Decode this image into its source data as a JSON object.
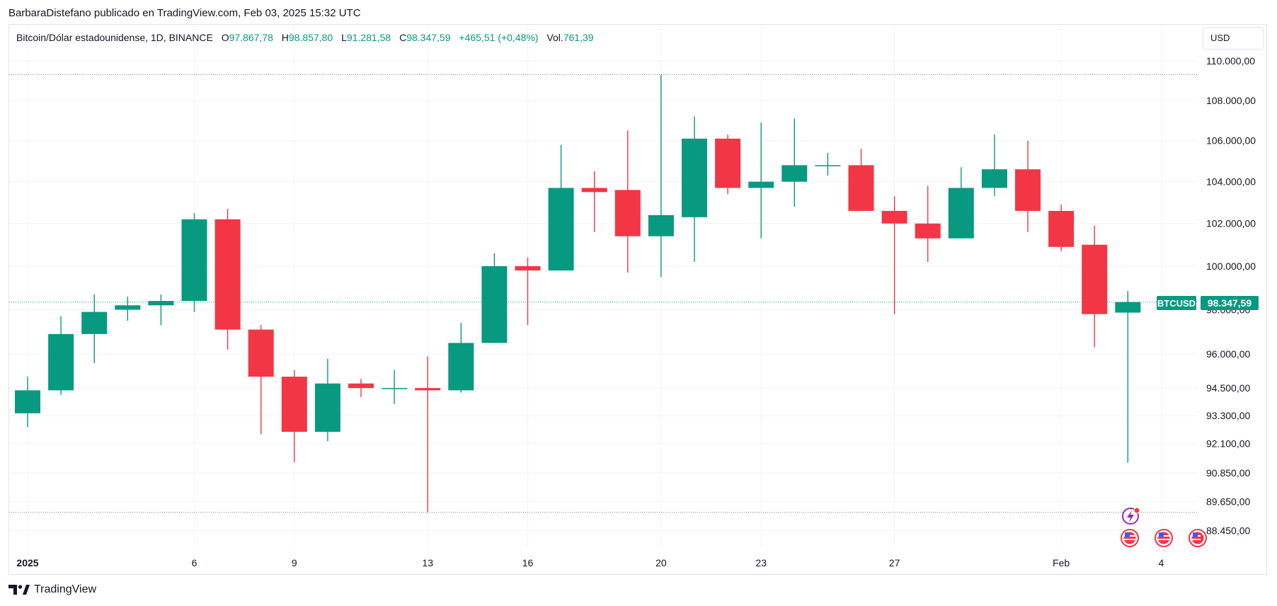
{
  "header": {
    "published": "BarbaraDistefano publicado en TradingView.com, Feb 03, 2025 15:32 UTC"
  },
  "legend": {
    "symbol": "Bitcoin/Dólar estadounidense, 1D, BINANCE",
    "o_label": "O",
    "o_value": "97.867,78",
    "h_label": "H",
    "h_value": "98.857,80",
    "l_label": "L",
    "l_value": "91.281,58",
    "c_label": "C",
    "c_value": "98.347,59",
    "change": "+465,51 (+0,48%)",
    "vol_label": "Vol.",
    "vol_value": "761,39"
  },
  "currency": "USD",
  "price_tag": {
    "symbol": "BTCUSD",
    "value": "98.347,59"
  },
  "footer": {
    "brand": "TradingView"
  },
  "colors": {
    "up": "#089981",
    "down": "#f23645",
    "grid": "#f0f3fa",
    "frame": "#e0e3eb",
    "text": "#131722",
    "event_purple": "#9c27b0"
  },
  "chart_data": {
    "type": "candlestick",
    "symbol": "BTCUSD",
    "interval": "1D",
    "exchange": "BINANCE",
    "y_scale": "log",
    "ylim": [
      87500,
      111500
    ],
    "y_ticks": [
      {
        "value": 110000,
        "label": "110.000,00"
      },
      {
        "value": 108000,
        "label": "108.000,00"
      },
      {
        "value": 106000,
        "label": "106.000,00"
      },
      {
        "value": 104000,
        "label": "104.000,00"
      },
      {
        "value": 102000,
        "label": "102.000,00"
      },
      {
        "value": 100000,
        "label": "100.000,00"
      },
      {
        "value": 98000,
        "label": "98.000,00"
      },
      {
        "value": 96000,
        "label": "96.000,00"
      },
      {
        "value": 94500,
        "label": "94.500,00"
      },
      {
        "value": 93300,
        "label": "93.300,00"
      },
      {
        "value": 92100,
        "label": "92.100,00"
      },
      {
        "value": 90850,
        "label": "90.850,00"
      },
      {
        "value": 89650,
        "label": "89.650,00"
      },
      {
        "value": 88450,
        "label": "88.450,00"
      }
    ],
    "x_ticks": [
      {
        "index": 0,
        "label": "2025",
        "bold": true
      },
      {
        "index": 5,
        "label": "6"
      },
      {
        "index": 8,
        "label": "9"
      },
      {
        "index": 12,
        "label": "13"
      },
      {
        "index": 15,
        "label": "16"
      },
      {
        "index": 19,
        "label": "20"
      },
      {
        "index": 22,
        "label": "23"
      },
      {
        "index": 26,
        "label": "27"
      },
      {
        "index": 31,
        "label": "Feb"
      },
      {
        "index": 34,
        "label": "4"
      }
    ],
    "range_high": 109300,
    "range_low": 89200,
    "last_price": 98347.59,
    "candles": [
      {
        "date": "2025-01-01",
        "o": 93400,
        "h": 95000,
        "l": 92800,
        "c": 94400
      },
      {
        "date": "2025-01-02",
        "o": 94400,
        "h": 97700,
        "l": 94200,
        "c": 96900
      },
      {
        "date": "2025-01-03",
        "o": 96900,
        "h": 98700,
        "l": 95600,
        "c": 97900
      },
      {
        "date": "2025-01-04",
        "o": 98000,
        "h": 98600,
        "l": 97500,
        "c": 98200
      },
      {
        "date": "2025-01-05",
        "o": 98200,
        "h": 98700,
        "l": 97300,
        "c": 98400
      },
      {
        "date": "2025-01-06",
        "o": 98400,
        "h": 102500,
        "l": 97900,
        "c": 102200
      },
      {
        "date": "2025-01-07",
        "o": 102200,
        "h": 102700,
        "l": 96200,
        "c": 97100
      },
      {
        "date": "2025-01-08",
        "o": 97100,
        "h": 97300,
        "l": 92500,
        "c": 95000
      },
      {
        "date": "2025-01-09",
        "o": 95000,
        "h": 95300,
        "l": 91300,
        "c": 92600
      },
      {
        "date": "2025-01-10",
        "o": 92600,
        "h": 95800,
        "l": 92200,
        "c": 94700
      },
      {
        "date": "2025-01-11",
        "o": 94700,
        "h": 94900,
        "l": 94100,
        "c": 94500
      },
      {
        "date": "2025-01-12",
        "o": 94500,
        "h": 95300,
        "l": 93800,
        "c": 94500
      },
      {
        "date": "2025-01-13",
        "o": 94500,
        "h": 95900,
        "l": 89200,
        "c": 94400
      },
      {
        "date": "2025-01-14",
        "o": 94400,
        "h": 97400,
        "l": 94300,
        "c": 96500
      },
      {
        "date": "2025-01-15",
        "o": 96500,
        "h": 100600,
        "l": 96500,
        "c": 100000
      },
      {
        "date": "2025-01-16",
        "o": 100000,
        "h": 100400,
        "l": 97300,
        "c": 99800
      },
      {
        "date": "2025-01-17",
        "o": 99800,
        "h": 105800,
        "l": 99800,
        "c": 103700
      },
      {
        "date": "2025-01-18",
        "o": 103700,
        "h": 104500,
        "l": 101600,
        "c": 103500
      },
      {
        "date": "2025-01-19",
        "o": 103600,
        "h": 106500,
        "l": 99700,
        "c": 101400
      },
      {
        "date": "2025-01-20",
        "o": 101400,
        "h": 109300,
        "l": 99500,
        "c": 102400
      },
      {
        "date": "2025-01-21",
        "o": 102300,
        "h": 107200,
        "l": 100200,
        "c": 106100
      },
      {
        "date": "2025-01-22",
        "o": 106100,
        "h": 106300,
        "l": 103400,
        "c": 103700
      },
      {
        "date": "2025-01-23",
        "o": 103700,
        "h": 106900,
        "l": 101300,
        "c": 104000
      },
      {
        "date": "2025-01-24",
        "o": 104000,
        "h": 107100,
        "l": 102800,
        "c": 104800
      },
      {
        "date": "2025-01-25",
        "o": 104800,
        "h": 105400,
        "l": 104300,
        "c": 104800
      },
      {
        "date": "2025-01-26",
        "o": 104800,
        "h": 105600,
        "l": 102600,
        "c": 102600
      },
      {
        "date": "2025-01-27",
        "o": 102600,
        "h": 103300,
        "l": 97800,
        "c": 102000
      },
      {
        "date": "2025-01-28",
        "o": 102000,
        "h": 103800,
        "l": 100200,
        "c": 101300
      },
      {
        "date": "2025-01-29",
        "o": 101300,
        "h": 104700,
        "l": 101300,
        "c": 103700
      },
      {
        "date": "2025-01-30",
        "o": 103700,
        "h": 106300,
        "l": 103300,
        "c": 104600
      },
      {
        "date": "2025-01-31",
        "o": 104600,
        "h": 106000,
        "l": 101600,
        "c": 102600
      },
      {
        "date": "2025-02-01",
        "o": 102600,
        "h": 102900,
        "l": 100700,
        "c": 100900
      },
      {
        "date": "2025-02-02",
        "o": 101000,
        "h": 101900,
        "l": 96300,
        "c": 97800
      },
      {
        "date": "2025-02-03",
        "o": 97868,
        "h": 98858,
        "l": 91282,
        "c": 98348
      }
    ]
  }
}
